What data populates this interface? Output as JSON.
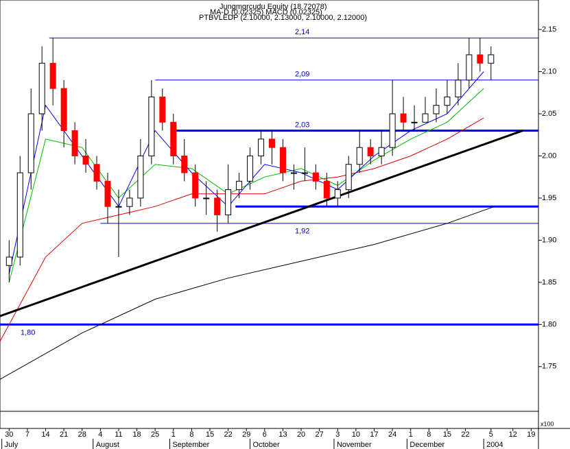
{
  "chart_data": {
    "type": "candlestick",
    "header": [
      "Jungmgrcudu Equity (18.72078)",
      "MA-D (0.02325) MACD (0.02325)",
      "PTBVLEDP (2.10000, 2.13000, 2.10000, 2.12000)"
    ],
    "xlim": [
      -2.5,
      145
    ],
    "ylim": [
      1.697,
      2.185
    ],
    "yticks": [
      2.15,
      {
        "value": 2.1,
        "label": "2.10"
      },
      2.05,
      {
        "value": 2.0,
        "label": "2.00"
      },
      1.95,
      {
        "value": 1.9,
        "label": "1.90"
      },
      1.85,
      {
        "value": 1.8,
        "label": "1.80"
      },
      1.75
    ],
    "xticks": [
      {
        "value": 0,
        "label": "30"
      },
      {
        "value": 5,
        "label": "7"
      },
      {
        "value": 10,
        "label": "14"
      },
      {
        "value": 15,
        "label": "21"
      },
      {
        "value": 20,
        "label": "28"
      },
      {
        "value": 25,
        "label": "4"
      },
      {
        "value": 30,
        "label": "11"
      },
      {
        "value": 35,
        "label": "18"
      },
      {
        "value": 40,
        "label": "25"
      },
      {
        "value": 45,
        "label": "1"
      },
      {
        "value": 50,
        "label": "8"
      },
      {
        "value": 55,
        "label": "15"
      },
      {
        "value": 60,
        "label": "22"
      },
      {
        "value": 65,
        "label": "29"
      },
      {
        "value": 70,
        "label": "6"
      },
      {
        "value": 75,
        "label": "13"
      },
      {
        "value": 80,
        "label": "20"
      },
      {
        "value": 85,
        "label": "27"
      },
      {
        "value": 90,
        "label": "3"
      },
      {
        "value": 95,
        "label": "10"
      },
      {
        "value": 100,
        "label": "17"
      },
      {
        "value": 105,
        "label": "24"
      },
      {
        "value": 110,
        "label": "1"
      },
      {
        "value": 115,
        "label": "8"
      },
      {
        "value": 120,
        "label": "15"
      },
      {
        "value": 125,
        "label": "22"
      },
      {
        "value": 132,
        "label": "5"
      },
      {
        "value": 138,
        "label": "12"
      },
      {
        "value": 143,
        "label": "19"
      }
    ],
    "month_ticks": [
      {
        "value": -2,
        "label": "July"
      },
      {
        "value": 23,
        "label": "August"
      },
      {
        "value": 44,
        "label": "September"
      },
      {
        "value": 66,
        "label": "October"
      },
      {
        "value": 89,
        "label": "November"
      },
      {
        "value": 109,
        "label": "December"
      },
      {
        "value": 130,
        "label": "2004"
      }
    ],
    "volume_unit": "x100",
    "up_color": "#ffffff",
    "down_color": "#ff0000",
    "x": [
      0,
      3,
      6,
      9,
      12,
      15,
      18,
      21,
      24,
      27,
      30,
      33,
      36,
      39,
      42,
      45,
      48,
      51,
      54,
      57,
      60,
      63,
      66,
      69,
      72,
      75,
      78,
      81,
      84,
      87,
      90,
      93,
      96,
      99,
      102,
      105,
      108,
      111,
      114,
      117,
      120,
      123,
      126,
      129,
      132
    ],
    "open": [
      1.87,
      1.88,
      1.98,
      2.05,
      2.11,
      2.08,
      2.03,
      2.0,
      1.99,
      1.97,
      1.94,
      1.94,
      1.95,
      2.0,
      2.07,
      2.04,
      2.0,
      1.98,
      1.95,
      1.95,
      1.93,
      1.96,
      1.97,
      2.0,
      2.02,
      2.01,
      1.98,
      1.98,
      1.98,
      1.97,
      1.95,
      1.96,
      1.99,
      2.01,
      2.0,
      2.01,
      2.05,
      2.04,
      2.04,
      2.05,
      2.06,
      2.07,
      2.09,
      2.12,
      2.11
    ],
    "high": [
      1.9,
      2.0,
      2.08,
      2.13,
      2.14,
      2.09,
      2.04,
      2.02,
      2.0,
      1.98,
      1.96,
      1.96,
      2.02,
      2.09,
      2.08,
      2.05,
      2.02,
      1.99,
      1.97,
      1.96,
      1.99,
      1.98,
      2.01,
      2.03,
      2.03,
      2.02,
      1.99,
      2.01,
      1.99,
      1.98,
      1.97,
      2.0,
      2.03,
      2.02,
      2.03,
      2.09,
      2.07,
      2.06,
      2.07,
      2.08,
      2.09,
      2.11,
      2.14,
      2.14,
      2.13
    ],
    "low": [
      1.85,
      1.87,
      1.96,
      2.03,
      2.06,
      2.01,
      1.99,
      1.98,
      1.96,
      1.92,
      1.88,
      1.93,
      1.94,
      1.99,
      2.03,
      1.99,
      1.97,
      1.94,
      1.93,
      1.91,
      1.92,
      1.95,
      1.96,
      1.99,
      1.99,
      1.97,
      1.96,
      1.97,
      1.96,
      1.94,
      1.94,
      1.95,
      1.98,
      1.99,
      1.99,
      2.0,
      2.03,
      2.03,
      2.04,
      2.04,
      2.05,
      2.06,
      2.08,
      2.1,
      2.09
    ],
    "close": [
      1.88,
      1.98,
      2.05,
      2.11,
      2.08,
      2.03,
      2.0,
      1.99,
      1.97,
      1.94,
      1.94,
      1.95,
      2.0,
      2.07,
      2.04,
      2.0,
      1.98,
      1.95,
      1.95,
      1.93,
      1.96,
      1.97,
      2.0,
      2.02,
      2.01,
      1.98,
      1.98,
      1.98,
      1.97,
      1.95,
      1.96,
      1.99,
      2.01,
      2.0,
      2.01,
      2.05,
      2.04,
      2.04,
      2.05,
      2.06,
      2.07,
      2.09,
      2.12,
      2.11,
      2.12
    ],
    "series": [
      {
        "color": "#000000",
        "x": [
          -2.5,
          20,
          40,
          60,
          80,
          100,
          120,
          133
        ],
        "values": [
          1.735,
          1.79,
          1.83,
          1.855,
          1.875,
          1.895,
          1.92,
          1.94
        ]
      },
      {
        "color": "#dd0000",
        "x": [
          -2.5,
          10,
          20,
          30,
          40,
          50,
          60,
          70,
          80,
          90,
          100,
          110,
          120,
          130
        ],
        "values": [
          1.78,
          1.88,
          1.92,
          1.93,
          1.94,
          1.955,
          1.955,
          1.955,
          1.97,
          1.975,
          1.985,
          2.0,
          2.02,
          2.045
        ]
      },
      {
        "color": "#00bb00",
        "x": [
          0,
          10,
          20,
          30,
          40,
          50,
          60,
          70,
          80,
          90,
          100,
          110,
          120,
          130
        ],
        "values": [
          1.85,
          2.02,
          2.01,
          1.95,
          1.99,
          1.985,
          1.955,
          1.975,
          1.985,
          1.965,
          1.995,
          2.02,
          2.04,
          2.08
        ]
      },
      {
        "color": "#0000ff",
        "x": [
          0,
          10,
          20,
          30,
          40,
          50,
          60,
          70,
          80,
          90,
          100,
          110,
          120,
          130
        ],
        "values": [
          1.86,
          2.06,
          2.0,
          1.94,
          2.03,
          1.98,
          1.94,
          1.99,
          1.98,
          1.96,
          2.0,
          2.03,
          2.05,
          2.1
        ]
      }
    ],
    "levels": [
      {
        "value": 2.14,
        "label": "2,14",
        "from": 11,
        "width": 1
      },
      {
        "value": 2.09,
        "label": "2,09",
        "from": 40,
        "width": 1
      },
      {
        "value": 2.03,
        "label": "2,03",
        "from": 45,
        "width": 3
      },
      {
        "value": 1.94,
        "label": null,
        "from": 62,
        "width": 3
      },
      {
        "value": 1.92,
        "label": "1,92",
        "from": 25,
        "width": 1
      },
      {
        "value": 1.8,
        "label": "1,80",
        "from": -2.5,
        "width": 3
      }
    ],
    "trendline": {
      "x": [
        -2.5,
        140.7
      ],
      "values": [
        1.81,
        2.03
      ]
    }
  }
}
